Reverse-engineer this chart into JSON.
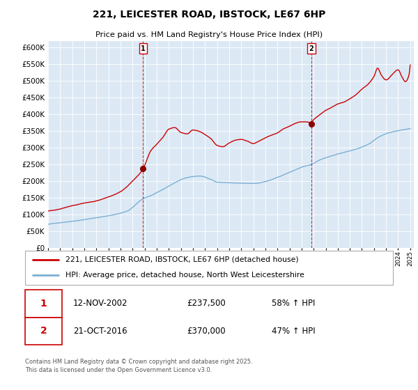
{
  "title": "221, LEICESTER ROAD, IBSTOCK, LE67 6HP",
  "subtitle": "Price paid vs. HM Land Registry's House Price Index (HPI)",
  "ylim": [
    0,
    620000
  ],
  "yticks": [
    0,
    50000,
    100000,
    150000,
    200000,
    250000,
    300000,
    350000,
    400000,
    450000,
    500000,
    550000,
    600000
  ],
  "plot_bg": "#dce9f5",
  "line1_color": "#cc0000",
  "line2_color": "#7bafd4",
  "vline_color": "#cc0000",
  "sale1_x": 2002.87,
  "sale1_price": 237500,
  "sale2_x": 2016.81,
  "sale2_price": 370000,
  "legend_line1": "221, LEICESTER ROAD, IBSTOCK, LE67 6HP (detached house)",
  "legend_line2": "HPI: Average price, detached house, North West Leicestershire",
  "ann1_date": "12-NOV-2002",
  "ann1_price": "£237,500",
  "ann1_hpi": "58% ↑ HPI",
  "ann2_date": "21-OCT-2016",
  "ann2_price": "£370,000",
  "ann2_hpi": "47% ↑ HPI",
  "footer": "Contains HM Land Registry data © Crown copyright and database right 2025.\nThis data is licensed under the Open Government Licence v3.0."
}
